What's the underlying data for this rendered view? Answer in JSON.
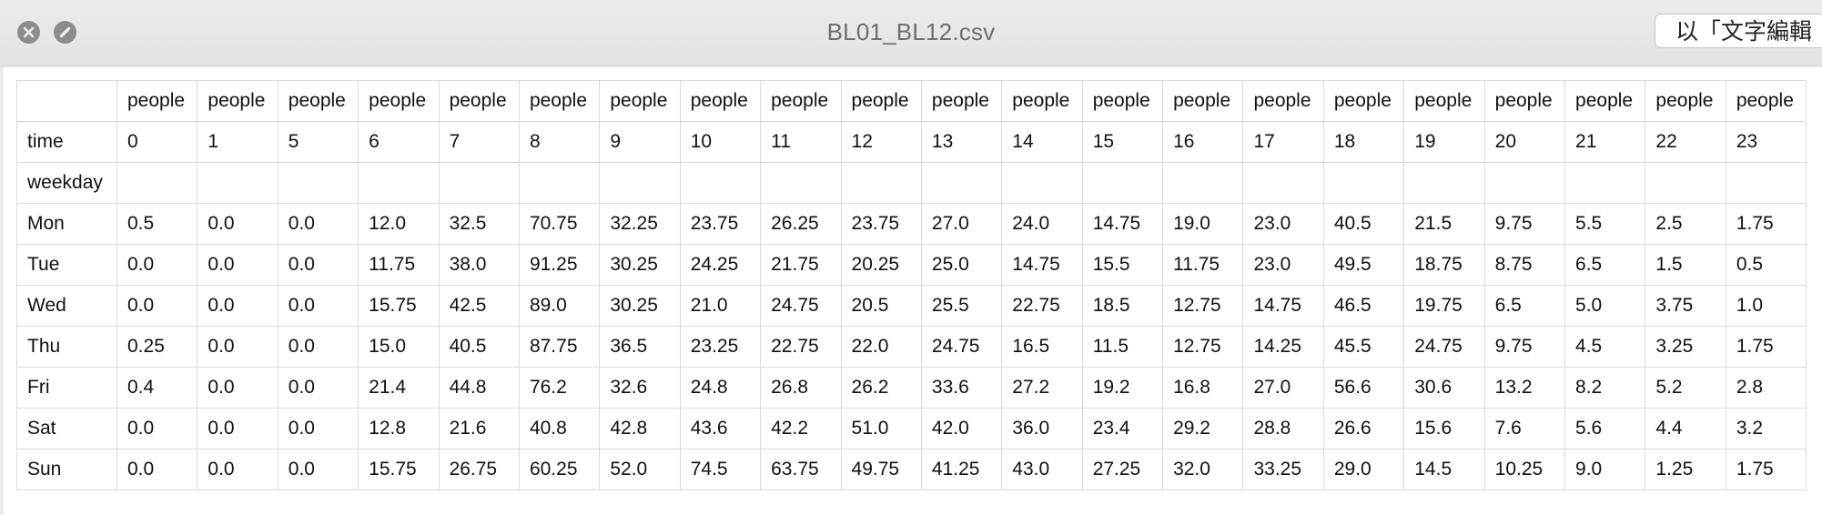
{
  "window": {
    "title": "BL01_BL12.csv",
    "open_button_label": "以「文字編輯"
  },
  "table": {
    "header_row": [
      "",
      "people",
      "people",
      "people",
      "people",
      "people",
      "people",
      "people",
      "people",
      "people",
      "people",
      "people",
      "people",
      "people",
      "people",
      "people",
      "people",
      "people",
      "people",
      "people",
      "people",
      "people"
    ],
    "time_row": [
      "time",
      "0",
      "1",
      "5",
      "6",
      "7",
      "8",
      "9",
      "10",
      "11",
      "12",
      "13",
      "14",
      "15",
      "16",
      "17",
      "18",
      "19",
      "20",
      "21",
      "22",
      "23"
    ],
    "weekday_row": [
      "weekday",
      "",
      "",
      "",
      "",
      "",
      "",
      "",
      "",
      "",
      "",
      "",
      "",
      "",
      "",
      "",
      "",
      "",
      "",
      "",
      "",
      ""
    ],
    "rows": [
      [
        "Mon",
        "0.5",
        "0.0",
        "0.0",
        "12.0",
        "32.5",
        "70.75",
        "32.25",
        "23.75",
        "26.25",
        "23.75",
        "27.0",
        "24.0",
        "14.75",
        "19.0",
        "23.0",
        "40.5",
        "21.5",
        "9.75",
        "5.5",
        "2.5",
        "1.75"
      ],
      [
        "Tue",
        "0.0",
        "0.0",
        "0.0",
        "11.75",
        "38.0",
        "91.25",
        "30.25",
        "24.25",
        "21.75",
        "20.25",
        "25.0",
        "14.75",
        "15.5",
        "11.75",
        "23.0",
        "49.5",
        "18.75",
        "8.75",
        "6.5",
        "1.5",
        "0.5"
      ],
      [
        "Wed",
        "0.0",
        "0.0",
        "0.0",
        "15.75",
        "42.5",
        "89.0",
        "30.25",
        "21.0",
        "24.75",
        "20.5",
        "25.5",
        "22.75",
        "18.5",
        "12.75",
        "14.75",
        "46.5",
        "19.75",
        "6.5",
        "5.0",
        "3.75",
        "1.0"
      ],
      [
        "Thu",
        "0.25",
        "0.0",
        "0.0",
        "15.0",
        "40.5",
        "87.75",
        "36.5",
        "23.25",
        "22.75",
        "22.0",
        "24.75",
        "16.5",
        "11.5",
        "12.75",
        "14.25",
        "45.5",
        "24.75",
        "9.75",
        "4.5",
        "3.25",
        "1.75"
      ],
      [
        "Fri",
        "0.4",
        "0.0",
        "0.0",
        "21.4",
        "44.8",
        "76.2",
        "32.6",
        "24.8",
        "26.8",
        "26.2",
        "33.6",
        "27.2",
        "19.2",
        "16.8",
        "27.0",
        "56.6",
        "30.6",
        "13.2",
        "8.2",
        "5.2",
        "2.8"
      ],
      [
        "Sat",
        "0.0",
        "0.0",
        "0.0",
        "12.8",
        "21.6",
        "40.8",
        "42.8",
        "43.6",
        "42.2",
        "51.0",
        "42.0",
        "36.0",
        "23.4",
        "29.2",
        "28.8",
        "26.6",
        "15.6",
        "7.6",
        "5.6",
        "4.4",
        "3.2"
      ],
      [
        "Sun",
        "0.0",
        "0.0",
        "0.0",
        "15.75",
        "26.75",
        "60.25",
        "52.0",
        "74.5",
        "63.75",
        "49.75",
        "41.25",
        "43.0",
        "27.25",
        "32.0",
        "33.25",
        "29.0",
        "14.5",
        "10.25",
        "9.0",
        "1.25",
        "1.75"
      ]
    ]
  }
}
